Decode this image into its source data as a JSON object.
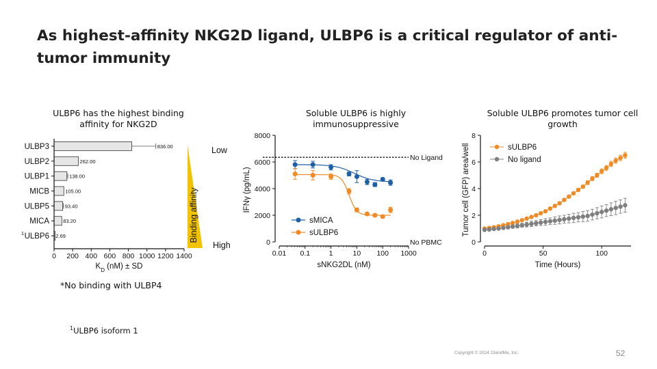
{
  "title": "As highest-affinity NKG2D ligand, ULBP6 is a critical regulator of anti-tumor immunity",
  "panel_titles": [
    "ULBP6 has the highest binding affinity for NKG2D",
    "Soluble ULBP6 is highly immunosuppressive",
    "Soluble ULBP6 promotes tumor cell growth"
  ],
  "notes": {
    "no_binding": "*No binding with ULBP4",
    "isoform_sup": "1",
    "isoform": "ULBP6 isoform 1"
  },
  "footer": {
    "copyright": "Copyright © 2024 23andMe, Inc.",
    "page_number": "52"
  },
  "colors": {
    "orange": "#f08a24",
    "blue": "#1f5fa8",
    "gray": "#7f7f7f",
    "gold": "#f2c300",
    "bar_fill": "#e6e6e6"
  },
  "chart_data": [
    {
      "type": "bar",
      "orientation": "horizontal",
      "categories": [
        "ULBP3",
        "ULBP2",
        "ULBP1",
        "MICB",
        "ULBP5",
        "MICA",
        "ULBP6"
      ],
      "category_superscripts": [
        "",
        "",
        "",
        "",
        "",
        "",
        "1"
      ],
      "values": [
        836.0,
        262.0,
        138.0,
        105.0,
        93.4,
        83.2,
        2.69
      ],
      "value_labels": [
        "836.00",
        "262.00",
        "138.00",
        "105.00",
        "93.40",
        "83.20",
        "2.69"
      ],
      "errors": [
        260,
        0,
        10,
        0,
        8,
        0,
        0
      ],
      "xlabel": "K_D (nM) ± SD",
      "xlabel_parts": {
        "pre": "K",
        "sub": "D",
        "post": " (nM) ± SD"
      },
      "xlim": [
        0,
        1400
      ],
      "xticks": [
        "0",
        "200",
        "400",
        "600",
        "800",
        "1000",
        "1200",
        "1400"
      ],
      "affinity_scale": {
        "label": "Binding affinity",
        "low": "Low",
        "high": "High"
      }
    },
    {
      "type": "scatter",
      "x_scale": "log",
      "xlabel": "sNKG2DL (nM)",
      "ylabel": "IFNγ (pg/mL)",
      "xlim": [
        0.01,
        1000
      ],
      "ylim": [
        0,
        8000
      ],
      "xticks": [
        "0.01",
        "0.1",
        "1",
        "10",
        "100",
        "1000"
      ],
      "yticks": [
        "0",
        "2000",
        "4000",
        "6000",
        "8000"
      ],
      "reference_lines": [
        {
          "label": "No Ligand",
          "y": 6350
        },
        {
          "label": "No PBMC",
          "y": 0
        }
      ],
      "series": [
        {
          "name": "sMICA",
          "x": [
            0.041,
            0.2,
            1,
            5,
            10,
            25,
            50,
            100,
            200
          ],
          "y": [
            5800,
            5800,
            5600,
            5100,
            4900,
            4500,
            4300,
            4700,
            4450
          ],
          "err": [
            300,
            250,
            200,
            150,
            450,
            200,
            150,
            100,
            200
          ]
        },
        {
          "name": "sULBP6",
          "x": [
            0.041,
            0.2,
            1,
            5,
            10,
            25,
            50,
            100,
            200
          ],
          "y": [
            5100,
            5000,
            4900,
            3800,
            2400,
            2100,
            2000,
            1900,
            2400
          ],
          "err": [
            400,
            350,
            200,
            200,
            150,
            100,
            100,
            100,
            200
          ]
        }
      ]
    },
    {
      "type": "line",
      "xlabel": "Time (Hours)",
      "ylabel": "Tumor cell (GFP) area/well",
      "xlim": [
        0,
        125
      ],
      "ylim": [
        0,
        8
      ],
      "xticks": [
        "0",
        "50",
        "100"
      ],
      "yticks": [
        "0",
        "2",
        "4",
        "6",
        "8"
      ],
      "series": [
        {
          "name": "sULBP6",
          "color": "#f08a24",
          "x": [
            0,
            4,
            8,
            12,
            16,
            20,
            24,
            28,
            32,
            36,
            40,
            44,
            48,
            52,
            56,
            60,
            64,
            68,
            72,
            76,
            80,
            84,
            88,
            92,
            96,
            100,
            104,
            108,
            112,
            116,
            120
          ],
          "y": [
            1.0,
            1.05,
            1.1,
            1.17,
            1.25,
            1.33,
            1.42,
            1.52,
            1.63,
            1.75,
            1.87,
            2.0,
            2.15,
            2.3,
            2.5,
            2.7,
            2.9,
            3.15,
            3.4,
            3.65,
            3.9,
            4.15,
            4.45,
            4.75,
            5.0,
            5.3,
            5.55,
            5.85,
            6.1,
            6.3,
            6.5
          ],
          "err": [
            0.05,
            0.05,
            0.05,
            0.05,
            0.05,
            0.05,
            0.05,
            0.05,
            0.05,
            0.05,
            0.05,
            0.05,
            0.05,
            0.08,
            0.08,
            0.08,
            0.1,
            0.1,
            0.1,
            0.1,
            0.12,
            0.12,
            0.15,
            0.15,
            0.15,
            0.18,
            0.18,
            0.2,
            0.2,
            0.2,
            0.22
          ]
        },
        {
          "name": "No ligand",
          "color": "#7f7f7f",
          "x": [
            0,
            4,
            8,
            12,
            16,
            20,
            24,
            28,
            32,
            36,
            40,
            44,
            48,
            52,
            56,
            60,
            64,
            68,
            72,
            76,
            80,
            84,
            88,
            92,
            96,
            100,
            104,
            108,
            112,
            116,
            120
          ],
          "y": [
            0.9,
            0.93,
            0.97,
            1.0,
            1.05,
            1.1,
            1.15,
            1.2,
            1.25,
            1.3,
            1.35,
            1.4,
            1.45,
            1.5,
            1.55,
            1.6,
            1.65,
            1.7,
            1.75,
            1.8,
            1.85,
            1.9,
            1.95,
            2.05,
            2.15,
            2.25,
            2.35,
            2.45,
            2.55,
            2.65,
            2.75
          ],
          "err": [
            0.05,
            0.05,
            0.08,
            0.1,
            0.1,
            0.12,
            0.12,
            0.15,
            0.15,
            0.18,
            0.2,
            0.2,
            0.22,
            0.25,
            0.25,
            0.28,
            0.3,
            0.3,
            0.32,
            0.35,
            0.35,
            0.38,
            0.4,
            0.4,
            0.42,
            0.45,
            0.45,
            0.48,
            0.5,
            0.5,
            0.52
          ]
        }
      ]
    }
  ]
}
